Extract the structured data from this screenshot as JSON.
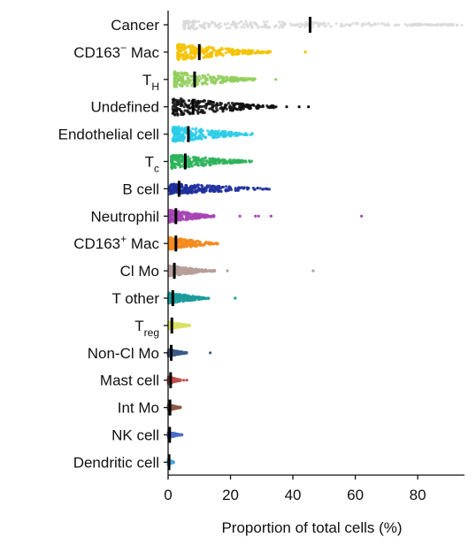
{
  "chart_data": {
    "type": "scatter",
    "subtype": "beeswarm",
    "title": "",
    "xlabel": "Proportion of total cells (%)",
    "ylabel": "",
    "xlim": [
      0,
      95
    ],
    "xticks": [
      0,
      20,
      40,
      60,
      80
    ],
    "grid": false,
    "legend": "none",
    "categories": [
      {
        "label": "Cancer",
        "label_sub": "",
        "label_sup": "",
        "color": "#d9d9d9",
        "median": 45.5,
        "p10": 5,
        "p90": 78,
        "max": 95,
        "spread": 5,
        "outliers": []
      },
      {
        "label": "CD163",
        "label_sub": "",
        "label_sup": "−",
        "label_rest": " Mac",
        "color": "#f5c200",
        "median": 10,
        "p10": 3,
        "p90": 24,
        "max": 33,
        "spread": 9,
        "outliers": [
          44
        ]
      },
      {
        "label": "T",
        "label_sub": "H",
        "label_sup": "",
        "color": "#93cf5d",
        "median": 8.5,
        "p10": 2,
        "p90": 22,
        "max": 28,
        "spread": 9,
        "outliers": [
          34.5
        ]
      },
      {
        "label": "Undefined",
        "label_sub": "",
        "label_sup": "",
        "color": "#111111",
        "median": 8,
        "p10": 1.5,
        "p90": 25,
        "max": 35,
        "spread": 10,
        "outliers": [
          38,
          42,
          45
        ]
      },
      {
        "label": "Endothelial cell",
        "label_sub": "",
        "label_sup": "",
        "color": "#2ccde8",
        "median": 6.5,
        "p10": 1.5,
        "p90": 18,
        "max": 27,
        "spread": 9,
        "outliers": []
      },
      {
        "label": "T",
        "label_sub": "c",
        "label_sup": "",
        "color": "#2db35a",
        "median": 5.5,
        "p10": 1,
        "p90": 18,
        "max": 27,
        "spread": 8,
        "outliers": []
      },
      {
        "label": "B cell",
        "label_sub": "",
        "label_sup": "",
        "color": "#1d2f9c",
        "median": 3.5,
        "p10": 0.5,
        "p90": 16,
        "max": 33,
        "spread": 6,
        "outliers": []
      },
      {
        "label": "Neutrophil",
        "label_sub": "",
        "label_sup": "",
        "color": "#a745b5",
        "median": 2.5,
        "p10": 0.3,
        "p90": 10,
        "max": 15,
        "spread": 7,
        "outliers": [
          23,
          28,
          29,
          33,
          62
        ]
      },
      {
        "label": "CD163",
        "label_sub": "",
        "label_sup": "+",
        "label_rest": " Mac",
        "color": "#f58b1f",
        "median": 2.5,
        "p10": 0.3,
        "p90": 10,
        "max": 16,
        "spread": 7,
        "outliers": []
      },
      {
        "label": "Cl Mo",
        "label_sub": "",
        "label_sup": "",
        "color": "#b79f9a",
        "median": 2,
        "p10": 0.3,
        "p90": 10,
        "max": 15,
        "spread": 6,
        "outliers": [
          19,
          46.5
        ]
      },
      {
        "label": "T other",
        "label_sub": "",
        "label_sup": "",
        "color": "#1c9b9b",
        "median": 1.5,
        "p10": 0.2,
        "p90": 8,
        "max": 13,
        "spread": 6,
        "outliers": [
          21.5
        ]
      },
      {
        "label": "T",
        "label_sub": "reg",
        "label_sup": "",
        "color": "#d9e060",
        "median": 1.2,
        "p10": 0.2,
        "p90": 5,
        "max": 7,
        "spread": 4,
        "outliers": []
      },
      {
        "label": "Non-Cl Mo",
        "label_sub": "",
        "label_sup": "",
        "color": "#3b5a88",
        "median": 1,
        "p10": 0.1,
        "p90": 4,
        "max": 6,
        "spread": 4,
        "outliers": [
          13.5
        ]
      },
      {
        "label": "Mast cell",
        "label_sub": "",
        "label_sup": "",
        "color": "#c0504d",
        "median": 0.8,
        "p10": 0.1,
        "p90": 3,
        "max": 4,
        "spread": 4,
        "outliers": [
          5,
          6
        ]
      },
      {
        "label": "Int Mo",
        "label_sub": "",
        "label_sup": "",
        "color": "#8a5a44",
        "median": 0.6,
        "p10": 0.1,
        "p90": 2.5,
        "max": 4,
        "spread": 3,
        "outliers": []
      },
      {
        "label": "NK cell",
        "label_sub": "",
        "label_sup": "",
        "color": "#4a6fc8",
        "median": 0.5,
        "p10": 0.1,
        "p90": 2,
        "max": 4.5,
        "spread": 3,
        "outliers": []
      },
      {
        "label": "Dendritic cell",
        "label_sub": "",
        "label_sup": "",
        "color": "#4da6df",
        "median": 0.3,
        "p10": 0.05,
        "p90": 1,
        "max": 1.8,
        "spread": 3,
        "outliers": []
      }
    ]
  }
}
